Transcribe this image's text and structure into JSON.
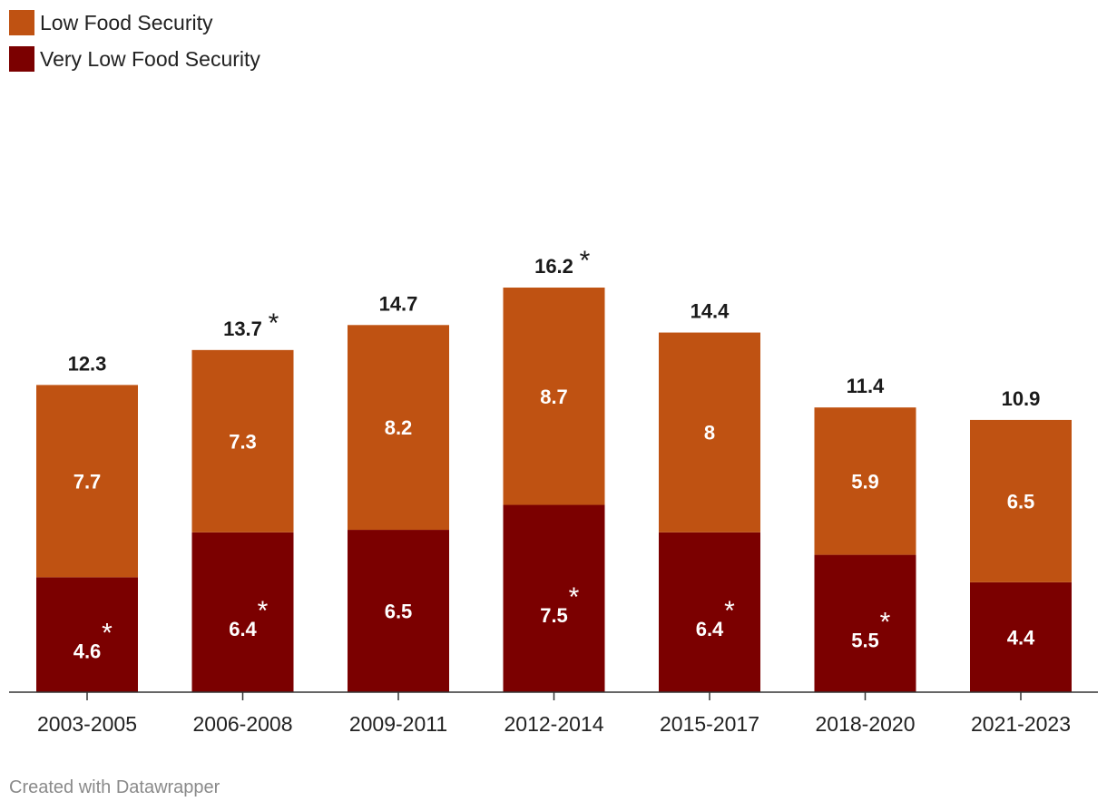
{
  "chart_data": {
    "type": "bar",
    "stacked": true,
    "categories": [
      "2003-2005",
      "2006-2008",
      "2009-2011",
      "2012-2014",
      "2015-2017",
      "2018-2020",
      "2021-2023"
    ],
    "series": [
      {
        "name": "Very Low Food Security",
        "color": "#7b0000",
        "values": [
          4.6,
          6.4,
          6.5,
          7.5,
          6.4,
          5.5,
          4.4
        ],
        "labels": [
          "4.6",
          "6.4",
          "6.5",
          "7.5",
          "6.4",
          "5.5",
          "4.4"
        ],
        "asterisk": [
          true,
          true,
          false,
          true,
          true,
          true,
          false
        ]
      },
      {
        "name": "Low Food Security",
        "color": "#bf5212",
        "values": [
          7.7,
          7.3,
          8.2,
          8.7,
          8.0,
          5.9,
          6.5
        ],
        "labels": [
          "7.7",
          "7.3",
          "8.2",
          "8.7",
          "8",
          "5.9",
          "6.5"
        ],
        "asterisk": [
          false,
          false,
          false,
          false,
          false,
          false,
          false
        ]
      }
    ],
    "totals": [
      12.3,
      13.7,
      14.7,
      16.2,
      14.4,
      11.4,
      10.9
    ],
    "total_labels": [
      "12.3",
      "13.7",
      "14.7",
      "16.2",
      "14.4",
      "11.4",
      "10.9"
    ],
    "total_asterisk": [
      false,
      true,
      false,
      true,
      false,
      false,
      false
    ],
    "asterisk_symbol": "*",
    "ylim": [
      0,
      18
    ],
    "xlabel": "",
    "ylabel": "",
    "legend_position": "top-left"
  },
  "legend": [
    {
      "label": "Low Food Security",
      "color": "#bf5212"
    },
    {
      "label": "Very Low Food Security",
      "color": "#7b0000"
    }
  ],
  "footer": {
    "credit": "Created with Datawrapper"
  }
}
